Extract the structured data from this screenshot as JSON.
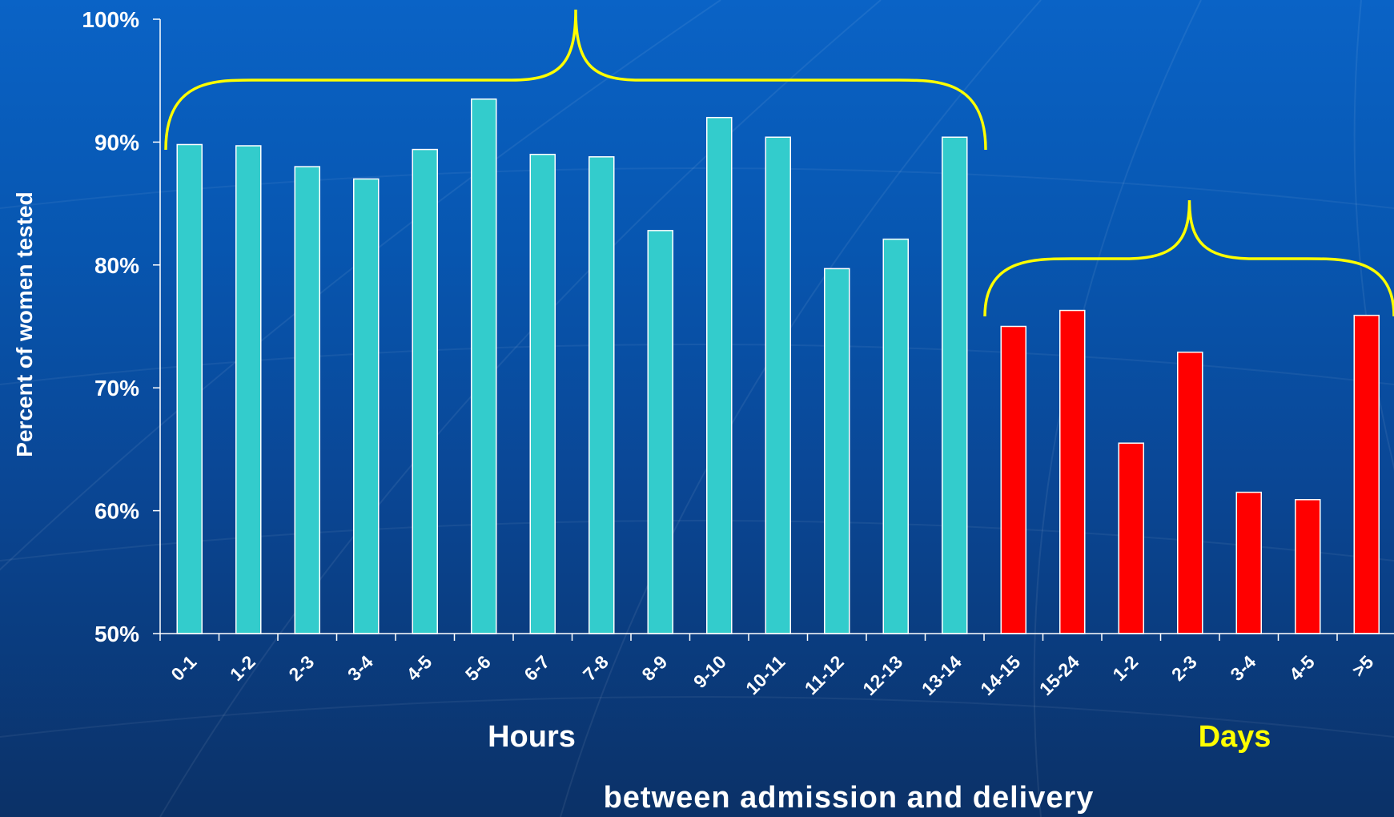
{
  "chart_data": {
    "type": "bar",
    "ylabel": "Percent of women tested",
    "xlabel": "between admission and delivery",
    "group_labels": {
      "hours": "Hours",
      "days": "Days"
    },
    "ylim": [
      50,
      100
    ],
    "yticks": [
      "50%",
      "60%",
      "70%",
      "80%",
      "90%",
      "100%"
    ],
    "categories": [
      "0-1",
      "1-2",
      "2-3",
      "3-4",
      "4-5",
      "5-6",
      "6-7",
      "7-8",
      "8-9",
      "9-10",
      "10-11",
      "11-12",
      "12-13",
      "13-14",
      "14-15",
      "15-24",
      "1-2",
      "2-3",
      "3-4",
      "4-5",
      ">5"
    ],
    "values": [
      89.8,
      89.7,
      88.0,
      87.0,
      89.4,
      93.5,
      89.0,
      88.8,
      82.8,
      92.0,
      90.4,
      79.7,
      82.1,
      90.4,
      75.0,
      76.3,
      65.5,
      72.9,
      61.5,
      60.9,
      75.9
    ],
    "bar_groups": [
      "hours",
      "hours",
      "hours",
      "hours",
      "hours",
      "hours",
      "hours",
      "hours",
      "hours",
      "hours",
      "hours",
      "hours",
      "hours",
      "hours",
      "days",
      "days",
      "days",
      "days",
      "days",
      "days",
      "days"
    ],
    "colors": {
      "hours": "#33cccc",
      "days": "#ff0000",
      "brace": "#ffff00",
      "bar_border": "#ffffff"
    },
    "grid": false,
    "legend": "none"
  }
}
